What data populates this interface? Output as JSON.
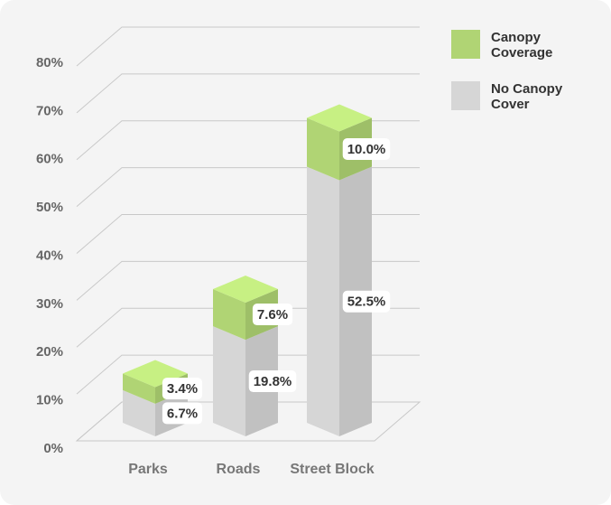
{
  "chart_data": {
    "type": "bar3d-stacked",
    "categories": [
      "Parks",
      "Roads",
      "Street Block"
    ],
    "series": [
      {
        "name": "Canopy Coverage",
        "color": "#b0d474",
        "values": [
          3.4,
          7.6,
          10.0
        ],
        "value_labels": [
          "3.4%",
          "7.6%",
          "10.0%"
        ]
      },
      {
        "name": "No Canopy Cover",
        "color": "#d6d6d6",
        "values": [
          6.7,
          19.8,
          52.5
        ],
        "value_labels": [
          "6.7%",
          "19.8%",
          "52.5%"
        ]
      }
    ],
    "ylim": [
      0,
      80
    ],
    "yticks": [
      {
        "value": 0,
        "label": "0%"
      },
      {
        "value": 10,
        "label": "10%"
      },
      {
        "value": 20,
        "label": "20%"
      },
      {
        "value": 30,
        "label": "30%"
      },
      {
        "value": 40,
        "label": "40%"
      },
      {
        "value": 50,
        "label": "50%"
      },
      {
        "value": 60,
        "label": "60%"
      },
      {
        "value": 70,
        "label": "70%"
      },
      {
        "value": 80,
        "label": "80%"
      }
    ],
    "grid": true,
    "legend": "top-right"
  }
}
